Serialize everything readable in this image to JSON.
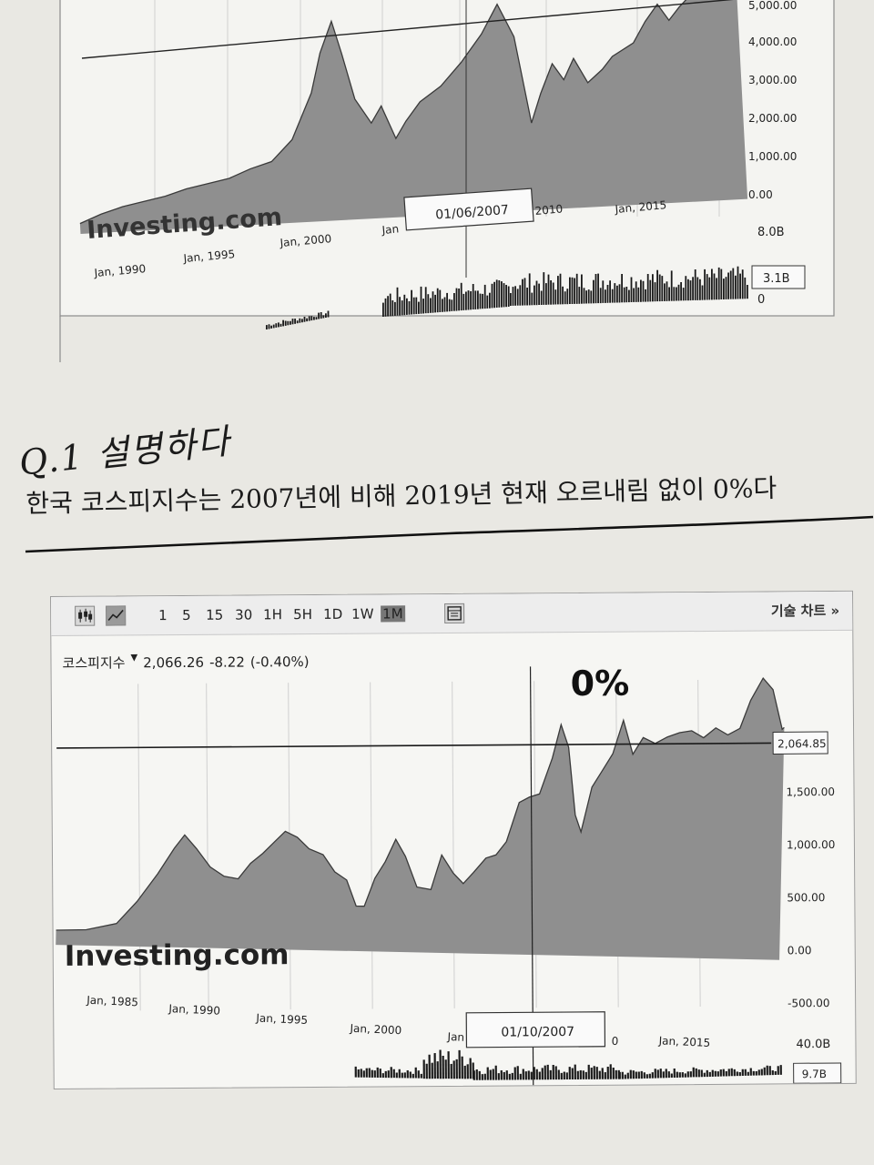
{
  "chart_data": [
    {
      "type": "area",
      "title": "",
      "xlabel": "",
      "ylabel": "",
      "x_tick_labels": [
        "Jan, 1990",
        "Jan, 1995",
        "Jan, 2000",
        "Jan",
        "2010",
        "Jan, 2015"
      ],
      "y_tick_labels": [
        "5,000.00",
        "4,000.00",
        "3,000.00",
        "2,000.00",
        "1,000.00",
        "0.00"
      ],
      "ylim": [
        0,
        5000
      ],
      "xlim": [
        1988,
        2019
      ],
      "volume_tick_labels": [
        "8.0B",
        "0"
      ],
      "volume_current_label": "3.1B",
      "crosshair_date": "01/06/2007",
      "watermark": "Investing.com",
      "series": [
        {
          "values": [
            [
              1988.0,
              250
            ],
            [
              1989.0,
              450
            ],
            [
              1990.0,
              600
            ],
            [
              1991.0,
              700
            ],
            [
              1992.0,
              800
            ],
            [
              1993.0,
              950
            ],
            [
              1994.0,
              1050
            ],
            [
              1995.0,
              1150
            ],
            [
              1996.0,
              1350
            ],
            [
              1997.0,
              1500
            ],
            [
              1998.0,
              2000
            ],
            [
              1999.0,
              3100
            ],
            [
              1999.5,
              4050
            ],
            [
              2000.1,
              4800
            ],
            [
              2000.5,
              4000
            ],
            [
              2001.0,
              2900
            ],
            [
              2001.7,
              2300
            ],
            [
              2002.2,
              2700
            ],
            [
              2002.8,
              1900
            ],
            [
              2003.3,
              2300
            ],
            [
              2004.0,
              2750
            ],
            [
              2005.0,
              3100
            ],
            [
              2006.0,
              3650
            ],
            [
              2007.0,
              4300
            ],
            [
              2007.8,
              5000
            ],
            [
              2008.5,
              4200
            ],
            [
              2009.1,
              2100
            ],
            [
              2009.6,
              2800
            ],
            [
              2010.2,
              3500
            ],
            [
              2010.7,
              3100
            ],
            [
              2011.2,
              3600
            ],
            [
              2011.8,
              3000
            ],
            [
              2012.5,
              3300
            ],
            [
              2013.0,
              3600
            ],
            [
              2014.0,
              3900
            ],
            [
              2014.6,
              4400
            ],
            [
              2015.2,
              4800
            ],
            [
              2015.7,
              4400
            ],
            [
              2016.2,
              4700
            ],
            [
              2017.0,
              5100
            ],
            [
              2017.6,
              5300
            ],
            [
              2018.3,
              5600
            ],
            [
              2018.9,
              5000
            ]
          ]
        }
      ]
    },
    {
      "type": "area",
      "title": "",
      "xlabel": "",
      "ylabel": "",
      "x_tick_labels": [
        "Jan, 1985",
        "Jan, 1990",
        "Jan, 1995",
        "Jan, 2000",
        "Jan",
        "0",
        "Jan, 2015"
      ],
      "y_tick_labels": [
        "1,500.00",
        "1,000.00",
        "500.00",
        "0.00",
        "-500.00"
      ],
      "ylim": [
        -500,
        2500
      ],
      "xlim": [
        1983,
        2019
      ],
      "volume_tick_labels": [
        "40.0B"
      ],
      "volume_current_label": "9.7B",
      "price_line_label": "2,064.85",
      "crosshair_date": "01/10/2007",
      "annotation": "0%",
      "watermark": "Investing.com",
      "series": [
        {
          "values": [
            [
              1983.0,
              130
            ],
            [
              1984.5,
              140
            ],
            [
              1986.0,
              200
            ],
            [
              1987.0,
              400
            ],
            [
              1988.0,
              650
            ],
            [
              1988.8,
              880
            ],
            [
              1989.3,
              1000
            ],
            [
              1989.9,
              880
            ],
            [
              1990.6,
              720
            ],
            [
              1991.3,
              640
            ],
            [
              1992.0,
              620
            ],
            [
              1992.6,
              760
            ],
            [
              1993.2,
              850
            ],
            [
              1993.8,
              960
            ],
            [
              1994.3,
              1050
            ],
            [
              1994.9,
              1000
            ],
            [
              1995.5,
              900
            ],
            [
              1996.2,
              850
            ],
            [
              1996.8,
              700
            ],
            [
              1997.4,
              630
            ],
            [
              1997.9,
              400
            ],
            [
              1998.3,
              400
            ],
            [
              1998.8,
              650
            ],
            [
              1999.3,
              800
            ],
            [
              1999.8,
              1000
            ],
            [
              2000.3,
              850
            ],
            [
              2000.9,
              580
            ],
            [
              2001.6,
              560
            ],
            [
              2002.1,
              870
            ],
            [
              2002.7,
              710
            ],
            [
              2003.2,
              620
            ],
            [
              2003.7,
              720
            ],
            [
              2004.3,
              850
            ],
            [
              2004.8,
              880
            ],
            [
              2005.3,
              1000
            ],
            [
              2005.9,
              1350
            ],
            [
              2006.4,
              1400
            ],
            [
              2006.9,
              1430
            ],
            [
              2007.5,
              1750
            ],
            [
              2007.9,
              2050
            ],
            [
              2008.3,
              1850
            ],
            [
              2008.7,
              1250
            ],
            [
              2009.0,
              1100
            ],
            [
              2009.5,
              1500
            ],
            [
              2010.0,
              1650
            ],
            [
              2010.5,
              1800
            ],
            [
              2011.0,
              2100
            ],
            [
              2011.5,
              1800
            ],
            [
              2012.0,
              1950
            ],
            [
              2012.6,
              1900
            ],
            [
              2013.2,
              1960
            ],
            [
              2013.8,
              2000
            ],
            [
              2014.4,
              2020
            ],
            [
              2015.0,
              1960
            ],
            [
              2015.6,
              2050
            ],
            [
              2016.2,
              1990
            ],
            [
              2016.8,
              2050
            ],
            [
              2017.3,
              2300
            ],
            [
              2017.9,
              2500
            ],
            [
              2018.4,
              2400
            ],
            [
              2018.9,
              2050
            ],
            [
              2019.0,
              2066
            ]
          ]
        }
      ]
    }
  ],
  "handwriting": "Q.1 설명하다",
  "caption": "한국 코스피지수는 2007년에 비해 2019년 현재 오르내림 없이 0%다",
  "toolbar": {
    "intervals": [
      "1",
      "5",
      "15",
      "30",
      "1H",
      "5H",
      "1D",
      "1W",
      "1M"
    ],
    "active_interval": "1M",
    "tech_chart_label": "기술 차트 »"
  },
  "quote": {
    "name": "코스피지수",
    "arrow": "▼",
    "price": "2,066.26",
    "change": "-8.22",
    "percent": "(-0.40%)"
  },
  "colors": {
    "area_fill": "#8f8f8f",
    "area_line": "#3a3a3a",
    "paper": "#e9e8e3",
    "panel": "#f6f6f3"
  }
}
